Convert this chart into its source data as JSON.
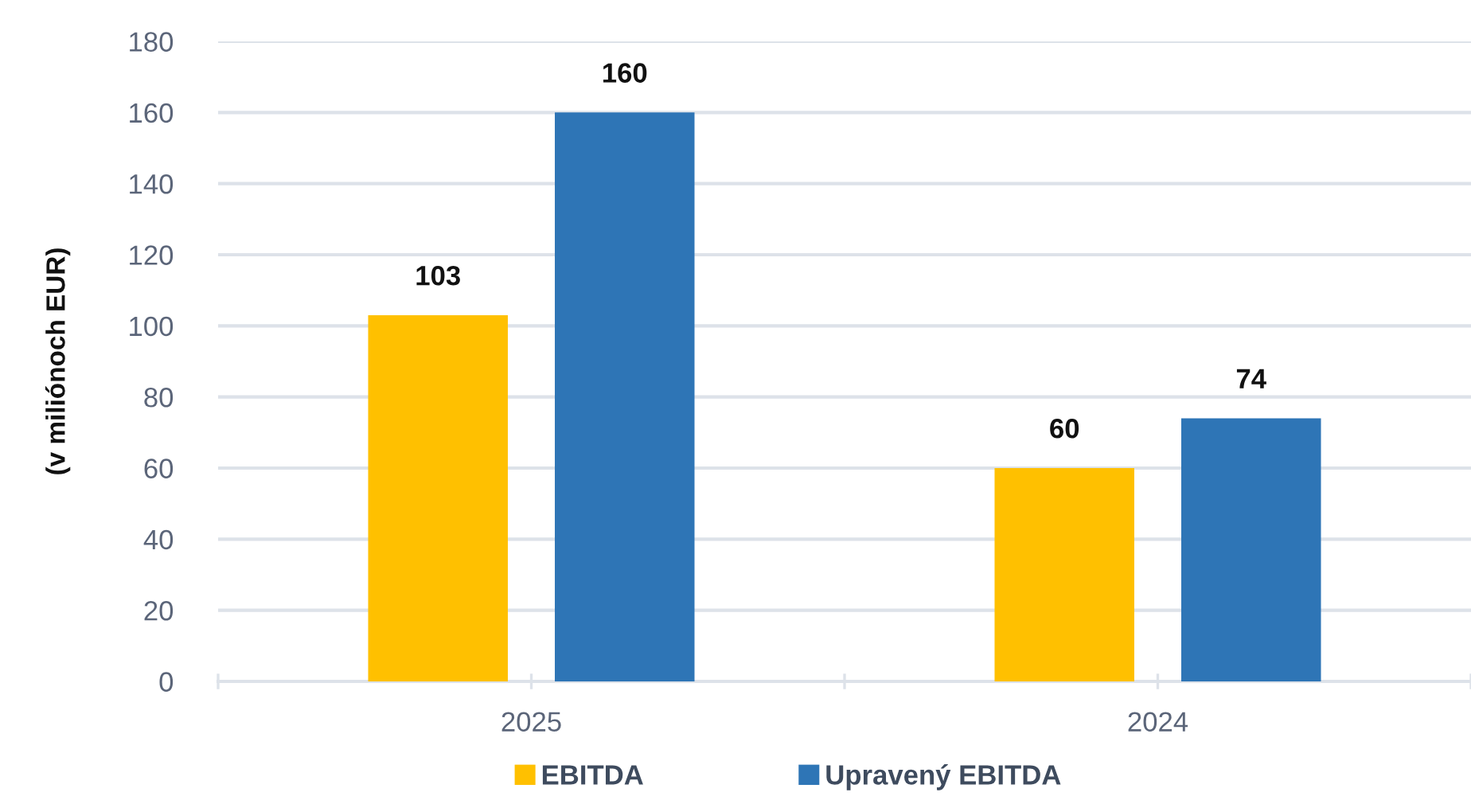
{
  "chart_data": {
    "type": "bar",
    "ylabel": "(v miliónoch EUR)",
    "categories": [
      "2025",
      "2024"
    ],
    "series": [
      {
        "name": "EBITDA",
        "color": "#ffc000",
        "values": [
          103,
          60
        ]
      },
      {
        "name": "Upravený EBITDA",
        "color": "#2e75b6",
        "values": [
          160,
          74
        ]
      }
    ],
    "ylim": [
      0,
      180
    ],
    "yticks": [
      0,
      20,
      40,
      60,
      80,
      100,
      120,
      140,
      160,
      180
    ],
    "grid": "y",
    "legend": "bottom",
    "data_labels": true
  }
}
